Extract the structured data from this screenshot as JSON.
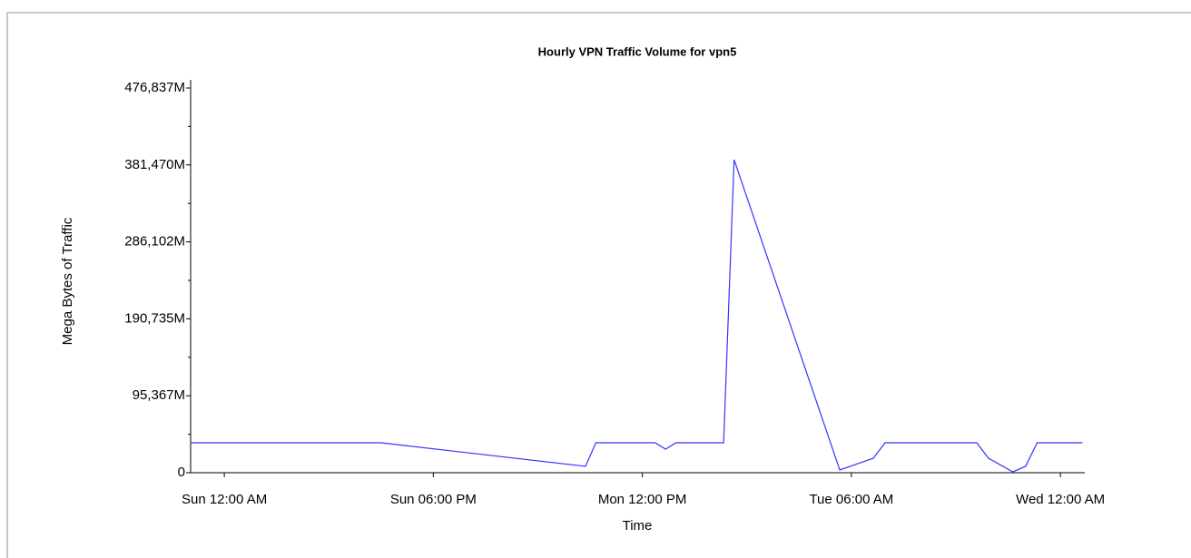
{
  "chart_data": {
    "type": "line",
    "title": "Hourly VPN Traffic Volume for vpn5",
    "x_label": "Time",
    "y_label": "Mega Bytes of Traffic",
    "x": [
      -2.9,
      13.5,
      31.1,
      32.0,
      37.1,
      38.0,
      38.9,
      43.0,
      43.9,
      53.0,
      55.9,
      56.9,
      64.8,
      65.8,
      67.9,
      69.0,
      70.0,
      73.9
    ],
    "series": [
      {
        "name": "vpn5",
        "color": "#3333ff",
        "values": [
          37100,
          37100,
          7900,
          37100,
          37100,
          29200,
          37100,
          37100,
          388000,
          3400,
          18000,
          37100,
          37100,
          18000,
          1100,
          7900,
          37100,
          37100
        ]
      }
    ],
    "xlim": [
      -2.9,
      74.1
    ],
    "xticks": [
      {
        "value": 0,
        "label": "Sun 12:00 AM"
      },
      {
        "value": 18,
        "label": "Sun 06:00 PM"
      },
      {
        "value": 36,
        "label": "Mon 12:00 PM"
      },
      {
        "value": 54,
        "label": "Tue 06:00 AM"
      },
      {
        "value": 72,
        "label": "Wed 12:00 AM"
      }
    ],
    "ylim": [
      0,
      476837
    ],
    "yticks": [
      0,
      {
        "value": 95367,
        "label": "95,367M"
      },
      {
        "value": 190735,
        "label": "190,735M"
      },
      {
        "value": 286102,
        "label": "286,102M"
      },
      {
        "value": 381470,
        "label": "381,470M"
      },
      {
        "value": 476837,
        "label": "476,837M"
      }
    ]
  }
}
